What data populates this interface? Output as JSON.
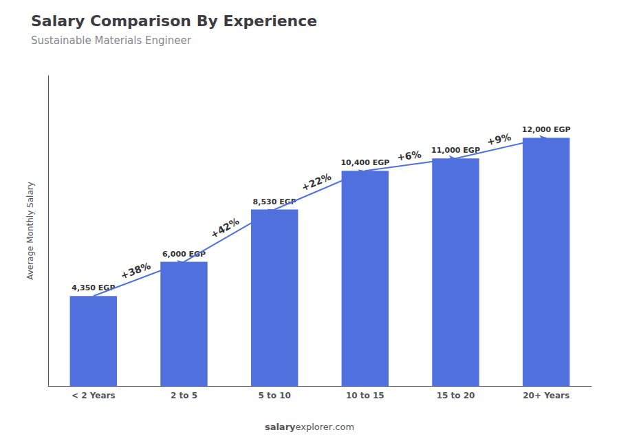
{
  "chart_data": {
    "type": "bar",
    "title": "Salary Comparison By Experience",
    "subtitle": "Sustainable Materials Engineer",
    "ylabel": "Average Monthly Salary",
    "categories": [
      "< 2 Years",
      "2 to 5",
      "5 to 10",
      "10 to 15",
      "15 to 20",
      "20+ Years"
    ],
    "values": [
      4350,
      6000,
      8530,
      10400,
      11000,
      12000
    ],
    "value_labels": [
      "4,350 EGP",
      "6,000 EGP",
      "8,530 EGP",
      "10,400 EGP",
      "11,000 EGP",
      "12,000 EGP"
    ],
    "data_labels": true,
    "annotations": [
      {
        "text": "+38%",
        "from": "< 2 Years",
        "to": "2 to 5"
      },
      {
        "text": "+42%",
        "from": "2 to 5",
        "to": "5 to 10"
      },
      {
        "text": "+22%",
        "from": "5 to 10",
        "to": "10 to 15"
      },
      {
        "text": "+6%",
        "from": "10 to 15",
        "to": "15 to 20"
      },
      {
        "text": "+9%",
        "from": "15 to 20",
        "to": "20+ Years"
      }
    ],
    "footer": [
      "salary",
      "explorer",
      ".com"
    ],
    "ylim": [
      0,
      15000
    ],
    "tick_labels": "x",
    "grid": false
  }
}
